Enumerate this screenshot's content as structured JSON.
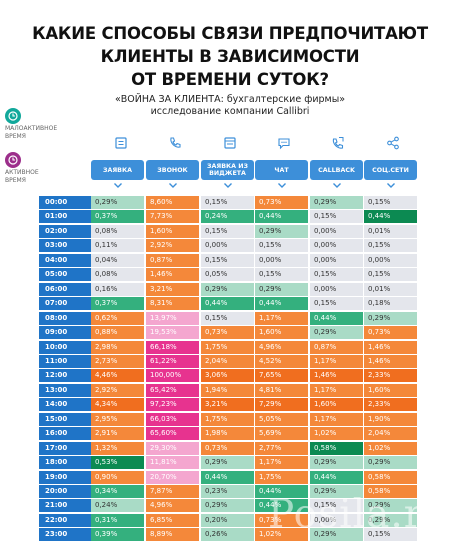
{
  "title_lines": [
    "КАКИЕ СПОСОБЫ СВЯЗИ ПРЕДПОЧИТАЮТ",
    "КЛИЕНТЫ  В ЗАВИСИМОСТИ",
    "ОТ ВРЕМЕНИ СУТОК?"
  ],
  "subtitle_lines": [
    "«ВОЙНА ЗА КЛИЕНТА: бухгалтерские фирмы»",
    "исследование компании Callibri"
  ],
  "legend": {
    "low": {
      "label_lines": [
        "МАЛОАКТИВНОЕ",
        "ВРЕМЯ"
      ],
      "color": "#12a89b",
      "icon": "clock-icon"
    },
    "high": {
      "label_lines": [
        "АКТИВНОЕ",
        "ВРЕМЯ"
      ],
      "color": "#9c2f8b",
      "icon": "clock-icon"
    }
  },
  "watermark": "Posila.ru",
  "colors": {
    "header": "#3d8fd9",
    "time_cell": "#1f74c7",
    "chevron": "#3d8fd9",
    "levels": {
      "lightgray": "#e4e6ec",
      "lightgreen": "#a9dbc6",
      "teal": "#34b07e",
      "darkgreen": "#0c8a52",
      "pink": "#f4a6cf",
      "orange": "#f4883a",
      "deeporange": "#f06e1f",
      "magenta": "#e7338f"
    }
  },
  "chart_data": {
    "type": "table",
    "columns": [
      {
        "label": "ЗАЯВКА",
        "icon": "form-icon"
      },
      {
        "label": "ЗВОНОК",
        "icon": "phone-icon"
      },
      {
        "label": "ЗАЯВКА ИЗ ВИДЖЕТА",
        "icon": "widget-icon"
      },
      {
        "label": "ЧАТ",
        "icon": "chat-icon"
      },
      {
        "label": "CALLBACK",
        "icon": "callback-phone-icon"
      },
      {
        "label": "СОЦ.СЕТИ",
        "icon": "share-icon"
      }
    ],
    "rows": [
      {
        "time": "00:00",
        "values": [
          "0,29%",
          "8,60%",
          "0,15%",
          "0,73%",
          "0,29%",
          "0,15%"
        ],
        "levels": [
          "lightgreen",
          "orange",
          "lightgray",
          "orange",
          "lightgreen",
          "lightgray"
        ]
      },
      {
        "time": "01:00",
        "values": [
          "0,37%",
          "7,73%",
          "0,24%",
          "0,44%",
          "0,15%",
          "0,44%"
        ],
        "levels": [
          "teal",
          "orange",
          "teal",
          "teal",
          "lightgray",
          "darkgreen"
        ]
      },
      {
        "time": "02:00",
        "values": [
          "0,08%",
          "1,60%",
          "0,15%",
          "0,29%",
          "0,00%",
          "0,01%"
        ],
        "levels": [
          "lightgray",
          "orange",
          "lightgray",
          "lightgreen",
          "lightgray",
          "lightgray"
        ]
      },
      {
        "time": "03:00",
        "values": [
          "0,11%",
          "2,92%",
          "0,00%",
          "0,15%",
          "0,00%",
          "0,15%"
        ],
        "levels": [
          "lightgray",
          "orange",
          "lightgray",
          "lightgray",
          "lightgray",
          "lightgray"
        ]
      },
      {
        "time": "04:00",
        "values": [
          "0,04%",
          "0,87%",
          "0,15%",
          "0,00%",
          "0,00%",
          "0,00%"
        ],
        "levels": [
          "lightgray",
          "orange",
          "lightgray",
          "lightgray",
          "lightgray",
          "lightgray"
        ]
      },
      {
        "time": "05:00",
        "values": [
          "0,08%",
          "1,46%",
          "0,05%",
          "0,15%",
          "0,15%",
          "0,15%"
        ],
        "levels": [
          "lightgray",
          "orange",
          "lightgray",
          "lightgray",
          "lightgray",
          "lightgray"
        ]
      },
      {
        "time": "06:00",
        "values": [
          "0,16%",
          "3,21%",
          "0,29%",
          "0,29%",
          "0,00%",
          "0,01%"
        ],
        "levels": [
          "lightgray",
          "orange",
          "lightgreen",
          "lightgreen",
          "lightgray",
          "lightgray"
        ]
      },
      {
        "time": "07:00",
        "values": [
          "0,37%",
          "8,31%",
          "0,44%",
          "0,44%",
          "0,15%",
          "0,18%"
        ],
        "levels": [
          "teal",
          "orange",
          "teal",
          "teal",
          "lightgray",
          "lightgray"
        ]
      },
      {
        "time": "08:00",
        "values": [
          "0,62%",
          "13,97%",
          "0,15%",
          "1,17%",
          "0,44%",
          "0,29%"
        ],
        "levels": [
          "orange",
          "pink",
          "lightgray",
          "orange",
          "teal",
          "lightgreen"
        ]
      },
      {
        "time": "09:00",
        "values": [
          "0,88%",
          "19,53%",
          "0,73%",
          "1,60%",
          "0,29%",
          "0,73%"
        ],
        "levels": [
          "orange",
          "pink",
          "orange",
          "orange",
          "lightgreen",
          "orange"
        ]
      },
      {
        "time": "10:00",
        "values": [
          "2,98%",
          "66,18%",
          "1,75%",
          "4,96%",
          "0,87%",
          "1,46%"
        ],
        "levels": [
          "orange",
          "magenta",
          "orange",
          "orange",
          "orange",
          "orange"
        ]
      },
      {
        "time": "11:00",
        "values": [
          "2,73%",
          "61,22%",
          "2,04%",
          "4,52%",
          "1,17%",
          "1,46%"
        ],
        "levels": [
          "orange",
          "magenta",
          "orange",
          "orange",
          "orange",
          "orange"
        ]
      },
      {
        "time": "12:00",
        "values": [
          "4,46%",
          "100,00%",
          "3,06%",
          "7,65%",
          "1,46%",
          "2,33%"
        ],
        "levels": [
          "deeporange",
          "magenta",
          "deeporange",
          "deeporange",
          "deeporange",
          "deeporange"
        ]
      },
      {
        "time": "13:00",
        "values": [
          "2,92%",
          "65,42%",
          "1,94%",
          "4,81%",
          "1,17%",
          "1,60%"
        ],
        "levels": [
          "orange",
          "magenta",
          "orange",
          "orange",
          "orange",
          "orange"
        ]
      },
      {
        "time": "14:00",
        "values": [
          "4,34%",
          "97,23%",
          "3,21%",
          "7,29%",
          "1,60%",
          "2,33%"
        ],
        "levels": [
          "deeporange",
          "magenta",
          "deeporange",
          "deeporange",
          "deeporange",
          "deeporange"
        ]
      },
      {
        "time": "15:00",
        "values": [
          "2,95%",
          "66,03%",
          "1,75%",
          "5,05%",
          "1,17%",
          "1,90%"
        ],
        "levels": [
          "orange",
          "magenta",
          "orange",
          "orange",
          "orange",
          "orange"
        ]
      },
      {
        "time": "16:00",
        "values": [
          "2,91%",
          "65,60%",
          "1,98%",
          "5,69%",
          "1,02%",
          "2,04%"
        ],
        "levels": [
          "orange",
          "magenta",
          "orange",
          "orange",
          "orange",
          "orange"
        ]
      },
      {
        "time": "17:00",
        "values": [
          "1,32%",
          "29,30%",
          "0,73%",
          "2,77%",
          "0,58%",
          "1,02%"
        ],
        "levels": [
          "orange",
          "pink",
          "orange",
          "orange",
          "darkgreen",
          "orange"
        ]
      },
      {
        "time": "18:00",
        "values": [
          "0,53%",
          "11,81%",
          "0,29%",
          "1,17%",
          "0,29%",
          "0,29%"
        ],
        "levels": [
          "darkgreen",
          "pink",
          "lightgreen",
          "orange",
          "lightgreen",
          "lightgreen"
        ]
      },
      {
        "time": "19:00",
        "values": [
          "0,90%",
          "20,70%",
          "0,44%",
          "1,75%",
          "0,44%",
          "0,58%"
        ],
        "levels": [
          "orange",
          "pink",
          "teal",
          "orange",
          "teal",
          "orange"
        ]
      },
      {
        "time": "20:00",
        "values": [
          "0,34%",
          "7,87%",
          "0,23%",
          "0,44%",
          "0,29%",
          "0,58%"
        ],
        "levels": [
          "teal",
          "orange",
          "lightgreen",
          "teal",
          "lightgreen",
          "orange"
        ]
      },
      {
        "time": "21:00",
        "values": [
          "0,24%",
          "4,96%",
          "0,29%",
          "0,44%",
          "0,15%",
          "0,29%"
        ],
        "levels": [
          "lightgreen",
          "orange",
          "lightgreen",
          "teal",
          "lightgray",
          "lightgreen"
        ]
      },
      {
        "time": "22:00",
        "values": [
          "0,31%",
          "6,85%",
          "0,20%",
          "0,73%",
          "0,00%",
          "0,29%"
        ],
        "levels": [
          "teal",
          "orange",
          "lightgreen",
          "orange",
          "lightgray",
          "lightgreen"
        ]
      },
      {
        "time": "23:00",
        "values": [
          "0,39%",
          "8,89%",
          "0,26%",
          "1,02%",
          "0,29%",
          "0,15%"
        ],
        "levels": [
          "teal",
          "orange",
          "lightgreen",
          "orange",
          "lightgreen",
          "lightgray"
        ]
      }
    ]
  }
}
